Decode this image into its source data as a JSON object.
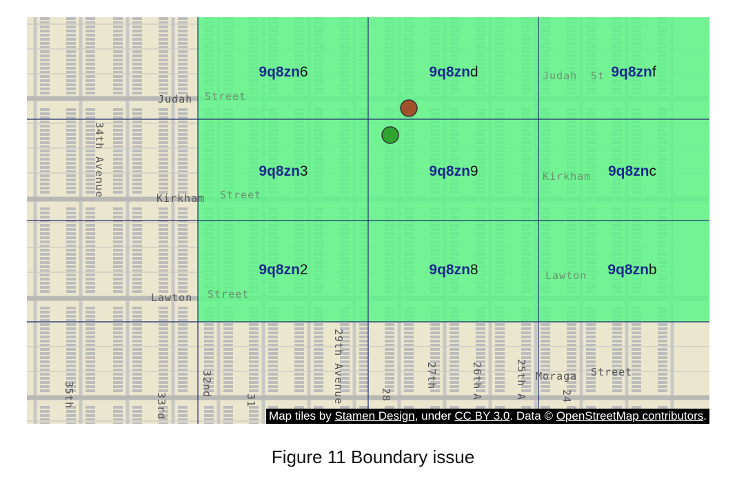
{
  "map": {
    "streets": {
      "judah_left": "Judah",
      "street_1": "Street",
      "judah_right": "Judah",
      "judah_right_st": "St",
      "kirkham_left": "Kirkham",
      "street_2": "Street",
      "kirkham_right": "Kirkham",
      "lawton_left": "Lawton",
      "street_3": "Street",
      "lawton_right": "Lawton",
      "moraga": "Moraga",
      "street_4": "Street",
      "ave_34th": "34th  Avenue",
      "ave_35th": "35th",
      "ave_33rd": "33rd",
      "ave_32nd": "32nd",
      "ave_31st": "31",
      "ave_29th": "29th  Avenue",
      "ave_28th": "28",
      "ave_27th": "27th",
      "ave_26th": "26th",
      "ave_25th": "25th",
      "ave_24th": "24",
      "ave_25th_suffix": "A",
      "ave_26th_suffix": "A"
    },
    "geohash_cells": [
      {
        "prefix": "9q8zn",
        "suffix": "6",
        "highlighted": true
      },
      {
        "prefix": "9q8zn",
        "suffix": "d",
        "highlighted": true
      },
      {
        "prefix": "9q8zn",
        "suffix": "f",
        "highlighted": true
      },
      {
        "prefix": "9q8zn",
        "suffix": "3",
        "highlighted": true
      },
      {
        "prefix": "9q8zn",
        "suffix": "9",
        "highlighted": true
      },
      {
        "prefix": "9q8zn",
        "suffix": "c",
        "highlighted": true
      },
      {
        "prefix": "9q8zn",
        "suffix": "2",
        "highlighted": true
      },
      {
        "prefix": "9q8zn",
        "suffix": "8",
        "highlighted": true
      },
      {
        "prefix": "9q8zn",
        "suffix": "b",
        "highlighted": true
      }
    ],
    "markers": [
      {
        "color": "#a0522d",
        "label": ""
      },
      {
        "color": "#2fa52f",
        "label": ""
      }
    ],
    "colors": {
      "highlight": "#5ef58a",
      "grid_line": "#1f2f6e",
      "prefix_text": "#1a2a8c",
      "land": "#ebe7cf",
      "street": "#c8c8c4",
      "building": "#bcbcbc"
    }
  },
  "attribution": {
    "t1": "Map tiles by ",
    "l1": "Stamen Design",
    "t2": ", under ",
    "l2": "CC BY 3.0",
    "t3": ". Data © ",
    "l3": "OpenStreetMap contributors",
    "t4": "."
  },
  "caption": "Figure 11 Boundary issue"
}
